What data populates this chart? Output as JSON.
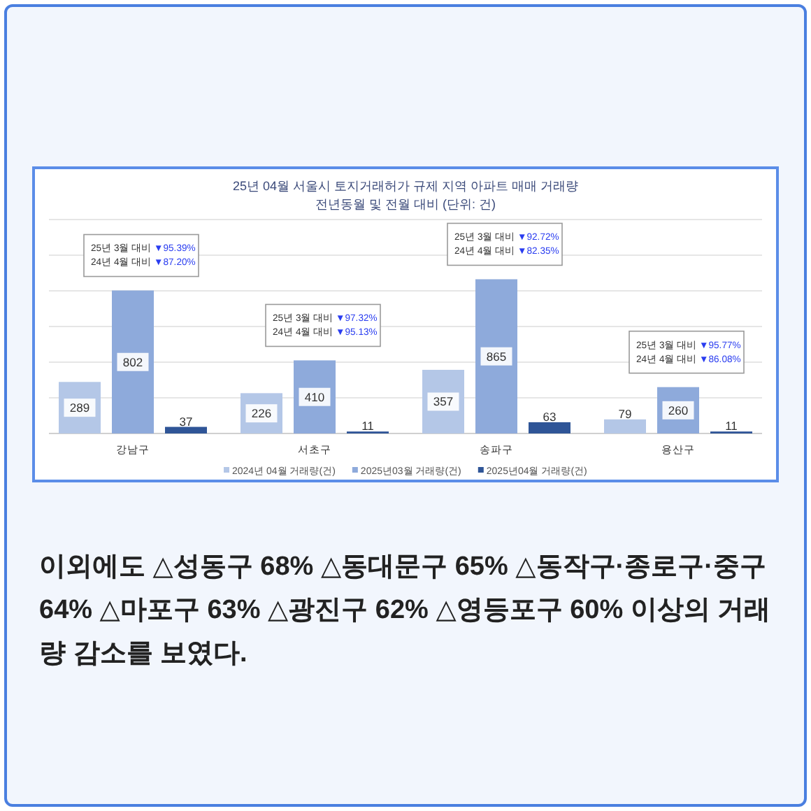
{
  "chart_data": {
    "type": "bar",
    "title": "25년 04월 서울시 토지거래허가 규제 지역 아파트 매매 거래량",
    "subtitle": "전년동월 및 전월 대비 (단위: 건)",
    "categories": [
      "강남구",
      "서초구",
      "송파구",
      "용산구"
    ],
    "series": [
      {
        "name": "2024년 04월 거래량(건)",
        "color": "#b4c7e7",
        "values": [
          289,
          226,
          357,
          79
        ]
      },
      {
        "name": "2025년03월 거래량(건)",
        "color": "#8eaadb",
        "values": [
          802,
          410,
          865,
          260
        ]
      },
      {
        "name": "2025년04월 거래량(건)",
        "color": "#2f5597",
        "values": [
          37,
          11,
          63,
          11
        ]
      }
    ],
    "ylim": [
      0,
      1200
    ],
    "yticks": [
      {
        "value": 0,
        "label": null
      },
      {
        "value": 200,
        "label": null
      },
      {
        "value": 400,
        "label": null
      },
      {
        "value": 600,
        "label": null
      },
      {
        "value": 800,
        "label": null
      },
      {
        "value": 1000,
        "label": null
      },
      {
        "value": 1200,
        "label": null
      }
    ],
    "grid": "y",
    "legend": "bottom",
    "data_labels": true,
    "annotations": [
      {
        "text": "25년 3월 대비 ▼95.39%\n24년 4월 대비 ▼87.20%",
        "x": "강남구",
        "y": 802
      },
      {
        "text": "25년 3월 대비 ▼97.32%\n24년 4월 대비 ▼95.13%",
        "x": "서초구",
        "y": 410
      },
      {
        "text": "25년 3월 대비 ▼92.72%\n24년 4월 대비 ▼82.35%",
        "x": "송파구",
        "y": 865
      },
      {
        "text": "25년 3월 대비 ▼95.77%\n24년 4월 대비 ▼86.08%",
        "x": "용산구",
        "y": 260
      },
      "이외에도 △성동구 68% △동대문구 65% △동작구·종로구·중구 64% △마포구 63% △광진구 62% △영등포구 60% 이상의 거래량 감소를 보였다."
    ]
  }
}
